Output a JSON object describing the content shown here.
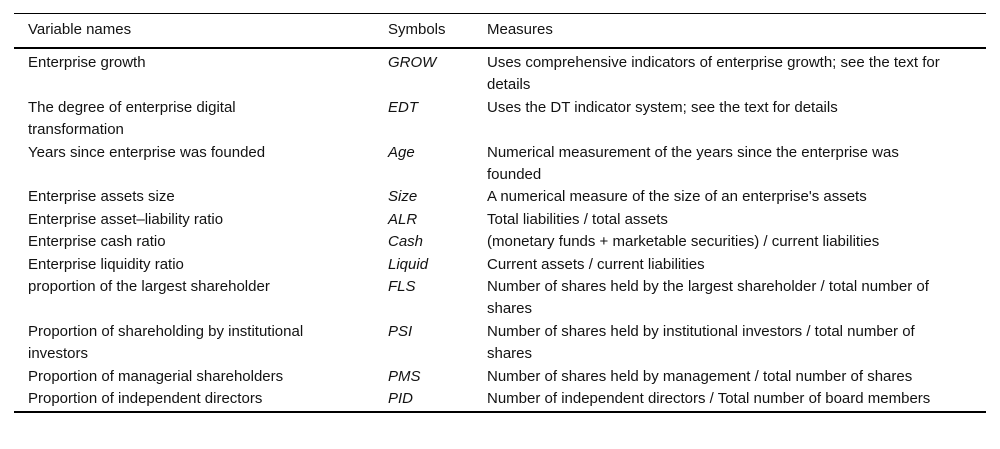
{
  "table": {
    "columns": {
      "variable": "Variable names",
      "symbol": "Symbols",
      "measure": "Measures"
    },
    "rows": [
      {
        "variable": "Enterprise growth",
        "symbol": "GROW",
        "measure": "Uses comprehensive indicators of enterprise growth; see the text for details"
      },
      {
        "variable": "The degree of enterprise digital transformation",
        "symbol": "EDT",
        "measure": "Uses the DT indicator system; see the text for details"
      },
      {
        "variable": "Years since enterprise was founded",
        "symbol": "Age",
        "measure": "Numerical measurement of the years since the enterprise was founded"
      },
      {
        "variable": "Enterprise assets size",
        "symbol": "Size",
        "measure": "A numerical measure of the size of an enterprise's assets"
      },
      {
        "variable": "Enterprise asset–liability ratio",
        "symbol": "ALR",
        "measure": "Total liabilities / total assets"
      },
      {
        "variable": "Enterprise cash ratio",
        "symbol": "Cash",
        "measure": "(monetary funds + marketable securities) / current liabilities"
      },
      {
        "variable": "Enterprise liquidity ratio",
        "symbol": "Liquid",
        "measure": "Current assets / current liabilities"
      },
      {
        "variable": "proportion of the largest shareholder",
        "symbol": "FLS",
        "measure": "Number of shares held by the largest shareholder / total number of shares"
      },
      {
        "variable": "Proportion of shareholding by institutional investors",
        "symbol": "PSI",
        "measure": "Number of shares held by institutional investors / total number of shares"
      },
      {
        "variable": "Proportion of managerial shareholders",
        "symbol": "PMS",
        "measure": "Number of shares held by management / total number of shares"
      },
      {
        "variable": "Proportion of independent directors",
        "symbol": "PID",
        "measure": "Number of independent directors / Total number of board members"
      }
    ]
  }
}
